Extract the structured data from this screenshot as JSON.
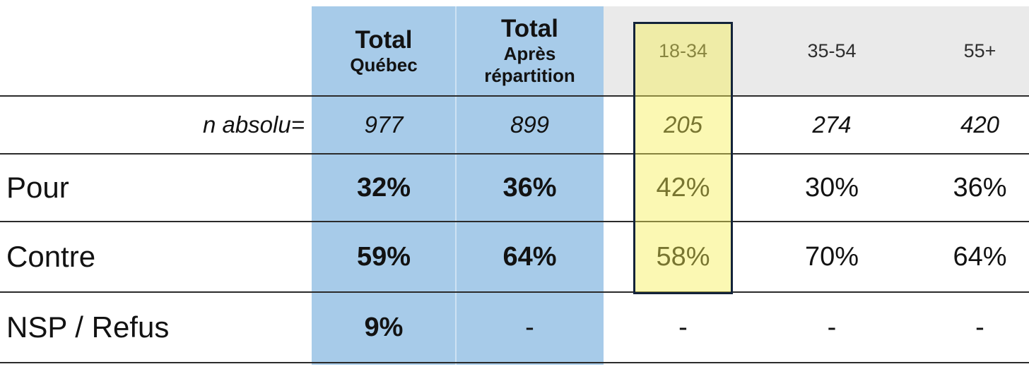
{
  "chart_data": {
    "type": "table",
    "title": "",
    "columns": [
      "",
      "Total Québec",
      "Total Après répartition",
      "18-34",
      "35-54",
      "55+"
    ],
    "rows": [
      [
        "n absolu=",
        977,
        899,
        205,
        274,
        420
      ],
      [
        "Pour",
        "32%",
        "36%",
        "42%",
        "30%",
        "36%"
      ],
      [
        "Contre",
        "59%",
        "64%",
        "58%",
        "70%",
        "64%"
      ],
      [
        "NSP / Refus",
        "9%",
        "-",
        "-",
        "-",
        "-"
      ]
    ],
    "highlighted_column": "18-34",
    "emphasized_columns": [
      "Total Québec",
      "Total Après répartition"
    ]
  },
  "header": {
    "total_quebec": {
      "title": "Total",
      "subtitle": "Québec"
    },
    "total_apres": {
      "title": "Total",
      "line1": "Après",
      "line2": "répartition"
    },
    "ages": [
      "18-34",
      "35-54",
      "55+"
    ]
  },
  "colors": {
    "total_columns_bg": "#a7cbe9",
    "age_header_bg": "#eaeaea",
    "highlight_fill": "#f7f3a0",
    "highlight_border": "#13233a",
    "highlight_text": "#6e6c27",
    "grid_line": "#2b2b2b",
    "text": "#121212"
  }
}
